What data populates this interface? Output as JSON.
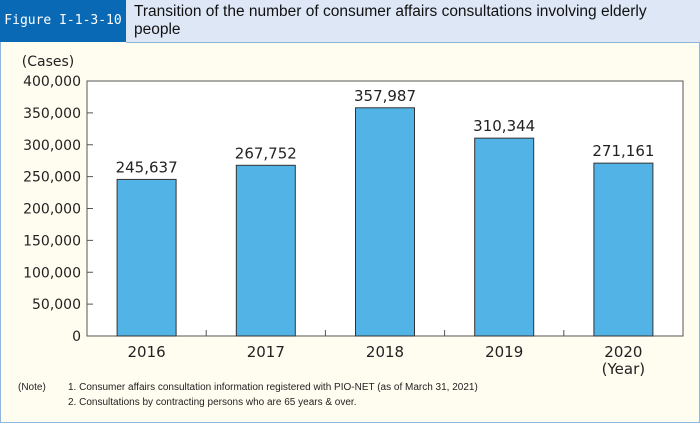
{
  "header": {
    "figure_label": "Figure I-1-3-10",
    "title": "Transition of the number of consumer affairs consultations involving elderly people"
  },
  "chart_data": {
    "type": "bar",
    "title": "Transition of the number of consumer affairs consultations involving elderly people",
    "categories": [
      "2016",
      "2017",
      "2018",
      "2019",
      "2020"
    ],
    "values": [
      245637,
      267752,
      357987,
      310344,
      271161
    ],
    "data_labels": [
      "245,637",
      "267,752",
      "357,987",
      "310,344",
      "271,161"
    ],
    "ylabel": "(Cases)",
    "xlabel": "(Year)",
    "ylim": [
      0,
      400000
    ],
    "yticks": [
      "0",
      "50,000",
      "100,000",
      "150,000",
      "200,000",
      "250,000",
      "300,000",
      "350,000",
      "400,000"
    ],
    "grid": false,
    "bar_color": "#52b3e6"
  },
  "notes": {
    "label": "(Note)",
    "items": [
      "1. Consumer affairs consultation information registered with PIO-NET (as of March 31, 2021)",
      "2. Consultations by contracting persons who are 65 years & over."
    ]
  }
}
